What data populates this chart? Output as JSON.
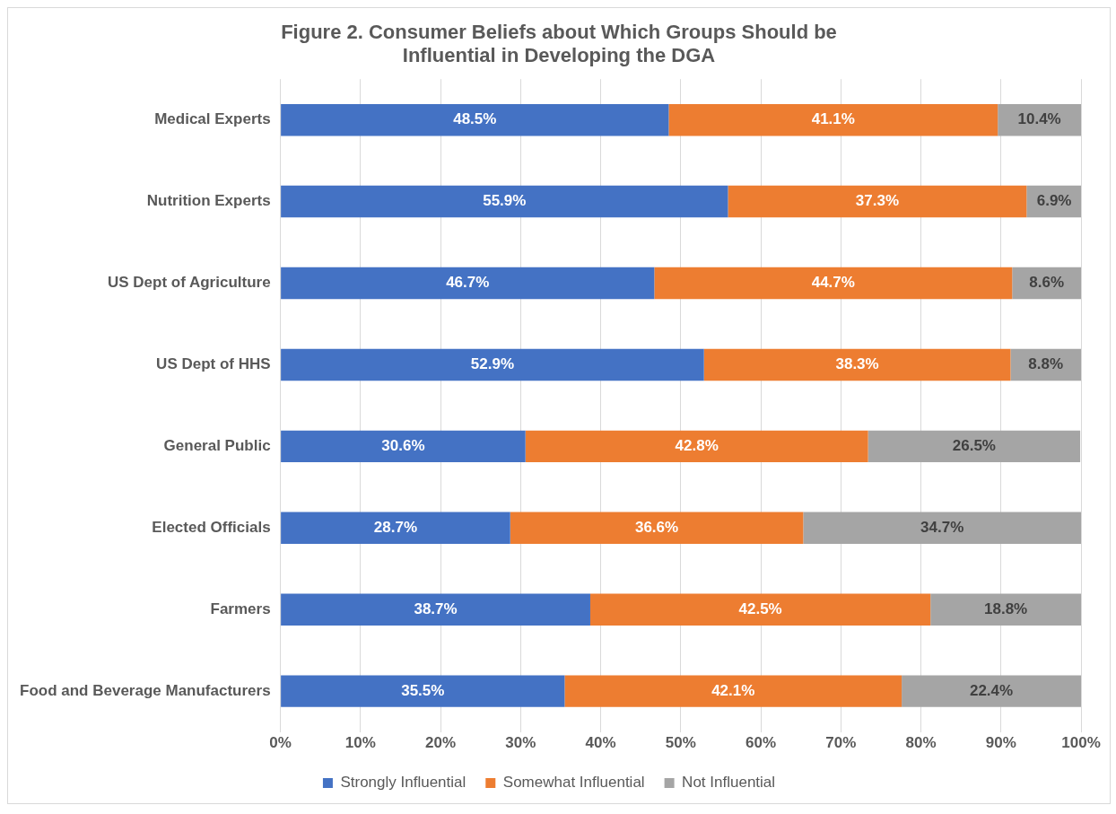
{
  "chart_data": {
    "type": "bar",
    "orientation": "horizontal",
    "stacked": true,
    "title": "Figure 2. Consumer Beliefs about Which Groups Should be Influential in Developing the DGA",
    "categories": [
      "Medical Experts",
      "Nutrition Experts",
      "US Dept of Agriculture",
      "US Dept of HHS",
      "General Public",
      "Elected Officials",
      "Farmers",
      "Food and Beverage Manufacturers"
    ],
    "series": [
      {
        "name": "Strongly Influential",
        "color": "#4472c4",
        "values": [
          48.5,
          55.9,
          46.7,
          52.9,
          30.6,
          28.7,
          38.7,
          35.5
        ],
        "value_labels": [
          "48.5%",
          "55.9%",
          "46.7%",
          "52.9%",
          "30.6%",
          "28.7%",
          "38.7%",
          "35.5%"
        ]
      },
      {
        "name": "Somewhat Influential",
        "color": "#ed7d31",
        "values": [
          41.1,
          37.3,
          44.7,
          38.3,
          42.8,
          36.6,
          42.5,
          42.1
        ],
        "value_labels": [
          "41.1%",
          "37.3%",
          "44.7%",
          "38.3%",
          "42.8%",
          "36.6%",
          "42.5%",
          "42.1%"
        ]
      },
      {
        "name": "Not Influential",
        "color": "#a5a5a5",
        "values": [
          10.4,
          6.9,
          8.6,
          8.8,
          26.5,
          34.7,
          18.8,
          22.4
        ],
        "value_labels": [
          "10.4%",
          "6.9%",
          "8.6%",
          "8.8%",
          "26.5%",
          "34.7%",
          "18.8%",
          "22.4%"
        ]
      }
    ],
    "xlim": [
      0,
      100
    ],
    "xticks": [
      {
        "value": 0,
        "label": "0%"
      },
      {
        "value": 10,
        "label": "10%"
      },
      {
        "value": 20,
        "label": "20%"
      },
      {
        "value": 30,
        "label": "30%"
      },
      {
        "value": 40,
        "label": "40%"
      },
      {
        "value": 50,
        "label": "50%"
      },
      {
        "value": 60,
        "label": "60%"
      },
      {
        "value": 70,
        "label": "70%"
      },
      {
        "value": 80,
        "label": "80%"
      },
      {
        "value": 90,
        "label": "90%"
      },
      {
        "value": 100,
        "label": "100%"
      }
    ],
    "grid": "x",
    "legend": "bottom"
  }
}
